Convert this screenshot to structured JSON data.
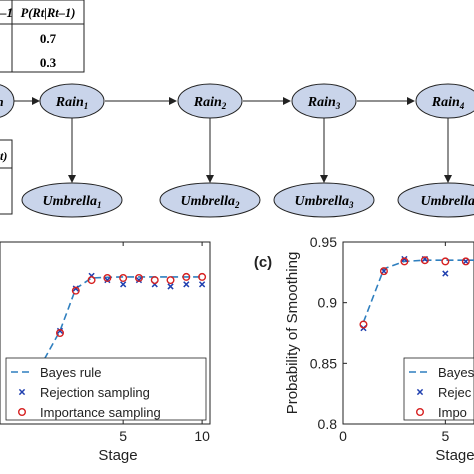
{
  "top_table": {
    "header_partial": "–1",
    "header_prob": "P(Rt|Rt–1)",
    "values": [
      "0.7",
      "0.3"
    ]
  },
  "left_table": {
    "header_partial": "t)"
  },
  "network": {
    "rain_nodes": [
      "Rain1",
      "Rain2",
      "Rain3",
      "Rain4"
    ],
    "umbrella_nodes": [
      "Umbrella1",
      "Umbrella2",
      "Umbrella3",
      "Umbrella4"
    ],
    "left_partial_node": "n"
  },
  "colors": {
    "node_fill": "#c9d4ea",
    "node_stroke": "#222222",
    "bayes": "#2f7fbf",
    "rejection": "#1f3faf",
    "importance": "#d62020"
  },
  "chart_data": [
    {
      "type": "line",
      "panel_label": "",
      "xlabel": "Stage",
      "ylabel": "",
      "xlim": [
        -2.8,
        10.5
      ],
      "ylim": [
        0.18,
        1.04
      ],
      "xticks": [
        "5",
        "10"
      ],
      "yticks": [],
      "grid": false,
      "legend_position": "bottom-right",
      "series": [
        {
          "name": "Bayes rule",
          "style": "dashed-line",
          "x": [
            -1,
            1,
            2,
            3,
            4,
            5,
            6,
            7,
            8,
            9,
            10
          ],
          "y": [
            0.35,
            0.62,
            0.82,
            0.87,
            0.873,
            0.875,
            0.875,
            0.875,
            0.875,
            0.875,
            0.875
          ]
        },
        {
          "name": "Rejection sampling",
          "style": "x-markers",
          "x": [
            1,
            2,
            3,
            4,
            5,
            6,
            7,
            8,
            9,
            10
          ],
          "y": [
            0.62,
            0.82,
            0.88,
            0.86,
            0.84,
            0.86,
            0.84,
            0.83,
            0.84,
            0.84
          ]
        },
        {
          "name": "Importance sampling",
          "style": "circle-markers",
          "x": [
            1,
            2,
            3,
            4,
            5,
            6,
            7,
            8,
            9,
            10
          ],
          "y": [
            0.61,
            0.81,
            0.86,
            0.87,
            0.87,
            0.87,
            0.86,
            0.86,
            0.875,
            0.875
          ]
        }
      ]
    },
    {
      "type": "line",
      "panel_label": "(c)",
      "xlabel": "Stage",
      "ylabel": "Probability of Smoothing",
      "xlim": [
        0,
        6.4
      ],
      "ylim": [
        0.8,
        0.95
      ],
      "xticks": [
        "0",
        "5"
      ],
      "yticks": [
        "0.8",
        "0.85",
        "0.9",
        "0.95"
      ],
      "grid": false,
      "legend_position": "bottom-right",
      "series": [
        {
          "name": "Bayes",
          "style": "dashed-line",
          "x": [
            1,
            2,
            3,
            4,
            5,
            6,
            6.4
          ],
          "y": [
            0.884,
            0.928,
            0.934,
            0.935,
            0.935,
            0.935,
            0.935
          ]
        },
        {
          "name": "Rejec",
          "style": "x-markers",
          "x": [
            1,
            2,
            3,
            4,
            5,
            6
          ],
          "y": [
            0.879,
            0.926,
            0.936,
            0.936,
            0.924,
            0.934
          ]
        },
        {
          "name": "Impo",
          "style": "circle-markers",
          "x": [
            1,
            2,
            3,
            4,
            5,
            6
          ],
          "y": [
            0.882,
            0.926,
            0.934,
            0.935,
            0.934,
            0.934
          ]
        }
      ]
    }
  ]
}
